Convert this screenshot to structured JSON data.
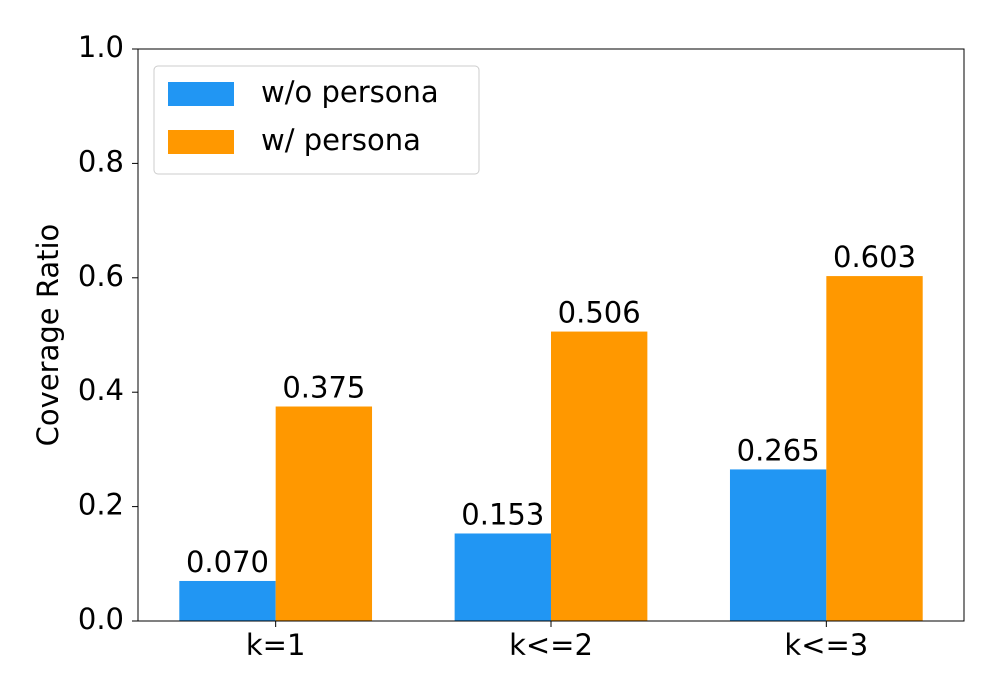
{
  "chart_data": {
    "type": "bar",
    "y_label": "Coverage Ratio",
    "categories": [
      "k=1",
      "k<=2",
      "k<=3"
    ],
    "series": [
      {
        "name": "w/o persona",
        "color": "#2196f3",
        "values": [
          0.07,
          0.153,
          0.265
        ],
        "value_labels": [
          "0.070",
          "0.153",
          "0.265"
        ]
      },
      {
        "name": "w/ persona",
        "color": "#ff9800",
        "values": [
          0.375,
          0.506,
          0.603
        ],
        "value_labels": [
          "0.375",
          "0.506",
          "0.603"
        ]
      }
    ],
    "ylim": [
      0,
      1
    ],
    "yticks": [
      {
        "value": 0,
        "label": "0.0"
      },
      0.2,
      0.4,
      0.6,
      0.8,
      {
        "value": 1,
        "label": "1.0"
      }
    ],
    "legend": "upper left",
    "grid": false
  }
}
